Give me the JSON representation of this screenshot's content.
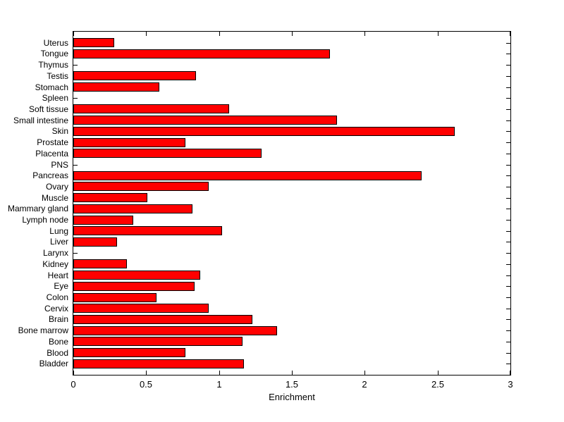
{
  "figure": {
    "background": "#FFFFFF",
    "text_color": "#000000"
  },
  "chart_data": {
    "type": "bar",
    "orientation": "horizontal",
    "title": "",
    "xlabel": "Enrichment",
    "ylabel": "",
    "xlim": [
      0,
      3
    ],
    "xticks": [
      0,
      0.5,
      1,
      1.5,
      2,
      2.5,
      3
    ],
    "xtick_labels": [
      "0",
      "0.5",
      "1",
      "1.5",
      "2",
      "2.5",
      "3"
    ],
    "grid": false,
    "legend": null,
    "bar_color": "#FF0000",
    "bar_edge_color": "#000000",
    "axis_color": "#000000",
    "categories": [
      "Uterus",
      "Tongue",
      "Thymus",
      "Testis",
      "Stomach",
      "Spleen",
      "Soft tissue",
      "Small intestine",
      "Skin",
      "Prostate",
      "Placenta",
      "PNS",
      "Pancreas",
      "Ovary",
      "Muscle",
      "Mammary gland",
      "Lymph node",
      "Lung",
      "Liver",
      "Larynx",
      "Kidney",
      "Heart",
      "Eye",
      "Colon",
      "Cervix",
      "Brain",
      "Bone marrow",
      "Bone",
      "Blood",
      "Bladder"
    ],
    "values": [
      0.28,
      1.76,
      0,
      0.84,
      0.59,
      0,
      1.07,
      1.81,
      2.62,
      0.77,
      1.29,
      0,
      2.39,
      0.93,
      0.51,
      0.82,
      0.41,
      1.02,
      0.3,
      0,
      0.37,
      0.87,
      0.83,
      0.57,
      0.93,
      1.23,
      1.4,
      1.16,
      0.77,
      1.17
    ]
  }
}
